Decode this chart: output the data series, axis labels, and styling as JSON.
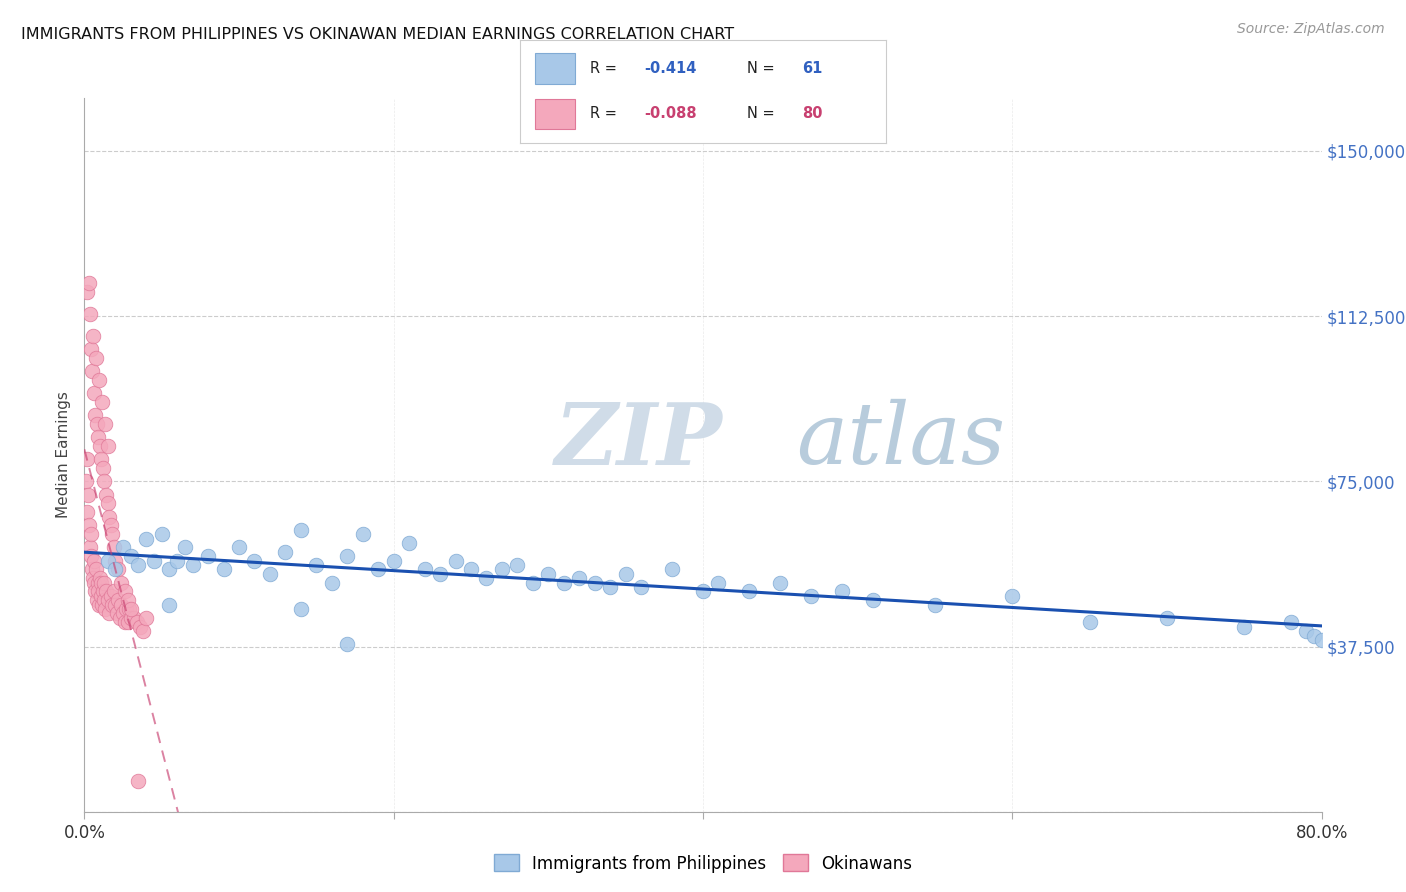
{
  "title": "IMMIGRANTS FROM PHILIPPINES VS OKINAWAN MEDIAN EARNINGS CORRELATION CHART",
  "source": "Source: ZipAtlas.com",
  "ylabel": "Median Earnings",
  "y_ticks": [
    0,
    37500,
    75000,
    112500,
    150000
  ],
  "y_tick_labels": [
    "",
    "$37,500",
    "$75,000",
    "$112,500",
    "$150,000"
  ],
  "x_min": 0.0,
  "x_max": 80.0,
  "y_min": 0,
  "y_max": 162000,
  "R_blue": -0.414,
  "N_blue": 61,
  "R_pink": -0.088,
  "N_pink": 80,
  "blue_color": "#a8c8e8",
  "blue_edge_color": "#80aad4",
  "pink_color": "#f4a8bc",
  "pink_edge_color": "#e07898",
  "trend_blue_color": "#1a50b0",
  "trend_pink_color": "#c84070",
  "background_color": "#ffffff",
  "grid_color": "#cccccc",
  "legend_label_blue": "Immigrants from Philippines",
  "legend_label_pink": "Okinawans",
  "blue_x": [
    1.5,
    2.0,
    2.5,
    3.0,
    3.5,
    4.0,
    4.5,
    5.0,
    5.5,
    6.0,
    6.5,
    7.0,
    8.0,
    9.0,
    10.0,
    11.0,
    12.0,
    13.0,
    14.0,
    15.0,
    16.0,
    17.0,
    18.0,
    19.0,
    20.0,
    21.0,
    22.0,
    23.0,
    24.0,
    25.0,
    26.0,
    27.0,
    28.0,
    29.0,
    30.0,
    31.0,
    32.0,
    33.0,
    34.0,
    35.0,
    36.0,
    38.0,
    40.0,
    41.0,
    43.0,
    45.0,
    47.0,
    49.0,
    51.0,
    55.0,
    60.0,
    65.0,
    70.0,
    75.0,
    78.0,
    79.0,
    79.5,
    80.0,
    14.0,
    17.0,
    5.5
  ],
  "blue_y": [
    57000,
    55000,
    60000,
    58000,
    56000,
    62000,
    57000,
    63000,
    55000,
    57000,
    60000,
    56000,
    58000,
    55000,
    60000,
    57000,
    54000,
    59000,
    64000,
    56000,
    52000,
    58000,
    63000,
    55000,
    57000,
    61000,
    55000,
    54000,
    57000,
    55000,
    53000,
    55000,
    56000,
    52000,
    54000,
    52000,
    53000,
    52000,
    51000,
    54000,
    51000,
    55000,
    50000,
    52000,
    50000,
    52000,
    49000,
    50000,
    48000,
    47000,
    49000,
    43000,
    44000,
    42000,
    43000,
    41000,
    40000,
    39000,
    46000,
    38000,
    47000
  ],
  "pink_x": [
    0.1,
    0.15,
    0.2,
    0.25,
    0.3,
    0.35,
    0.4,
    0.45,
    0.5,
    0.55,
    0.6,
    0.65,
    0.7,
    0.75,
    0.8,
    0.85,
    0.9,
    0.95,
    1.0,
    1.05,
    1.1,
    1.15,
    1.2,
    1.25,
    1.3,
    1.35,
    1.4,
    1.5,
    1.6,
    1.7,
    1.8,
    1.9,
    2.0,
    2.1,
    2.2,
    2.3,
    2.4,
    2.5,
    2.6,
    2.7,
    2.8,
    2.9,
    3.0,
    3.2,
    3.4,
    3.6,
    3.8,
    4.0,
    0.2,
    0.3,
    0.4,
    0.5,
    0.6,
    0.7,
    0.8,
    0.9,
    1.0,
    1.1,
    1.2,
    1.3,
    1.4,
    1.5,
    1.6,
    1.7,
    1.8,
    1.9,
    2.0,
    2.2,
    2.4,
    2.6,
    2.8,
    3.0,
    0.35,
    0.55,
    0.75,
    0.95,
    1.15,
    1.35,
    1.55,
    3.5
  ],
  "pink_y": [
    75000,
    80000,
    68000,
    72000,
    65000,
    60000,
    63000,
    58000,
    55000,
    53000,
    57000,
    52000,
    50000,
    55000,
    48000,
    52000,
    50000,
    47000,
    53000,
    49000,
    52000,
    47000,
    50000,
    48000,
    52000,
    46000,
    50000,
    48000,
    45000,
    49000,
    47000,
    50000,
    47000,
    45000,
    48000,
    44000,
    47000,
    45000,
    43000,
    46000,
    43000,
    46000,
    44000,
    44000,
    43000,
    42000,
    41000,
    44000,
    118000,
    120000,
    105000,
    100000,
    95000,
    90000,
    88000,
    85000,
    83000,
    80000,
    78000,
    75000,
    72000,
    70000,
    67000,
    65000,
    63000,
    60000,
    57000,
    55000,
    52000,
    50000,
    48000,
    46000,
    113000,
    108000,
    103000,
    98000,
    93000,
    88000,
    83000,
    7000
  ]
}
